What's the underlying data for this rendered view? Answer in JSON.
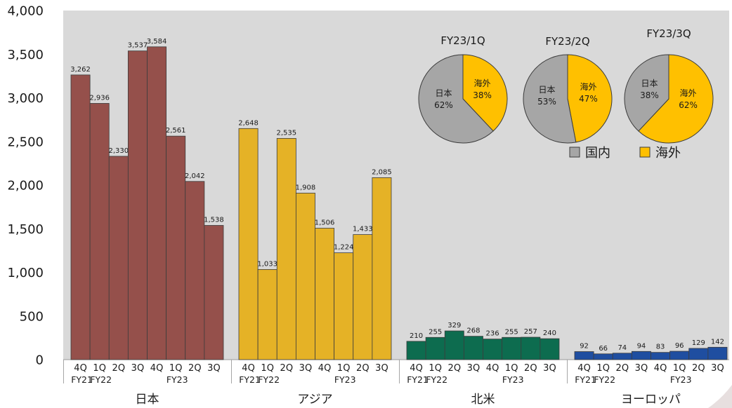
{
  "colors": {
    "plot_background": "#D9D9D9"
  },
  "chart_data": [
    {
      "type": "bar",
      "ylim": [
        0,
        4000
      ],
      "yticks": [
        0,
        500,
        1000,
        1500,
        2000,
        2500,
        3000,
        3500,
        4000
      ],
      "grid": false,
      "x": [
        {
          "quarter": "4Q",
          "fy": "FY21"
        },
        {
          "quarter": "1Q",
          "fy": "FY22"
        },
        {
          "quarter": "2Q",
          "fy": ""
        },
        {
          "quarter": "3Q",
          "fy": ""
        },
        {
          "quarter": "4Q",
          "fy": ""
        },
        {
          "quarter": "1Q",
          "fy": "FY23"
        },
        {
          "quarter": "2Q",
          "fy": ""
        },
        {
          "quarter": "3Q",
          "fy": ""
        }
      ],
      "groups": [
        {
          "name": "日本",
          "color": "#95504B",
          "values": [
            3262,
            2936,
            2330,
            3537,
            3584,
            2561,
            2042,
            1538
          ]
        },
        {
          "name": "アジア",
          "color": "#E5B226",
          "values": [
            2648,
            1033,
            2535,
            1908,
            1506,
            1224,
            1433,
            2085
          ]
        },
        {
          "name": "北米",
          "color": "#0D6C4F",
          "values": [
            210,
            255,
            329,
            268,
            236,
            255,
            257,
            240
          ]
        },
        {
          "name": "ヨーロッパ",
          "color": "#1F4EA0",
          "values": [
            92,
            66,
            74,
            94,
            83,
            96,
            129,
            142
          ]
        }
      ]
    },
    {
      "type": "pie",
      "title": "FY23/1Q",
      "slices": [
        {
          "name": "海外",
          "value": 38,
          "label": "38%",
          "color": "#FFC000"
        },
        {
          "name": "日本",
          "value": 62,
          "label": "62%",
          "color": "#A6A6A6"
        }
      ]
    },
    {
      "type": "pie",
      "title": "FY23/2Q",
      "slices": [
        {
          "name": "海外",
          "value": 47,
          "label": "47%",
          "color": "#FFC000"
        },
        {
          "name": "日本",
          "value": 53,
          "label": "53%",
          "color": "#A6A6A6"
        }
      ]
    },
    {
      "type": "pie",
      "title": "FY23/3Q",
      "slices": [
        {
          "name": "海外",
          "value": 62,
          "label": "62%",
          "color": "#FFC000"
        },
        {
          "name": "日本",
          "value": 38,
          "label": "38%",
          "color": "#A6A6A6"
        }
      ]
    }
  ],
  "pie_legend": [
    {
      "label": "国内",
      "color": "#A6A6A6"
    },
    {
      "label": "海外",
      "color": "#FFC000"
    }
  ]
}
